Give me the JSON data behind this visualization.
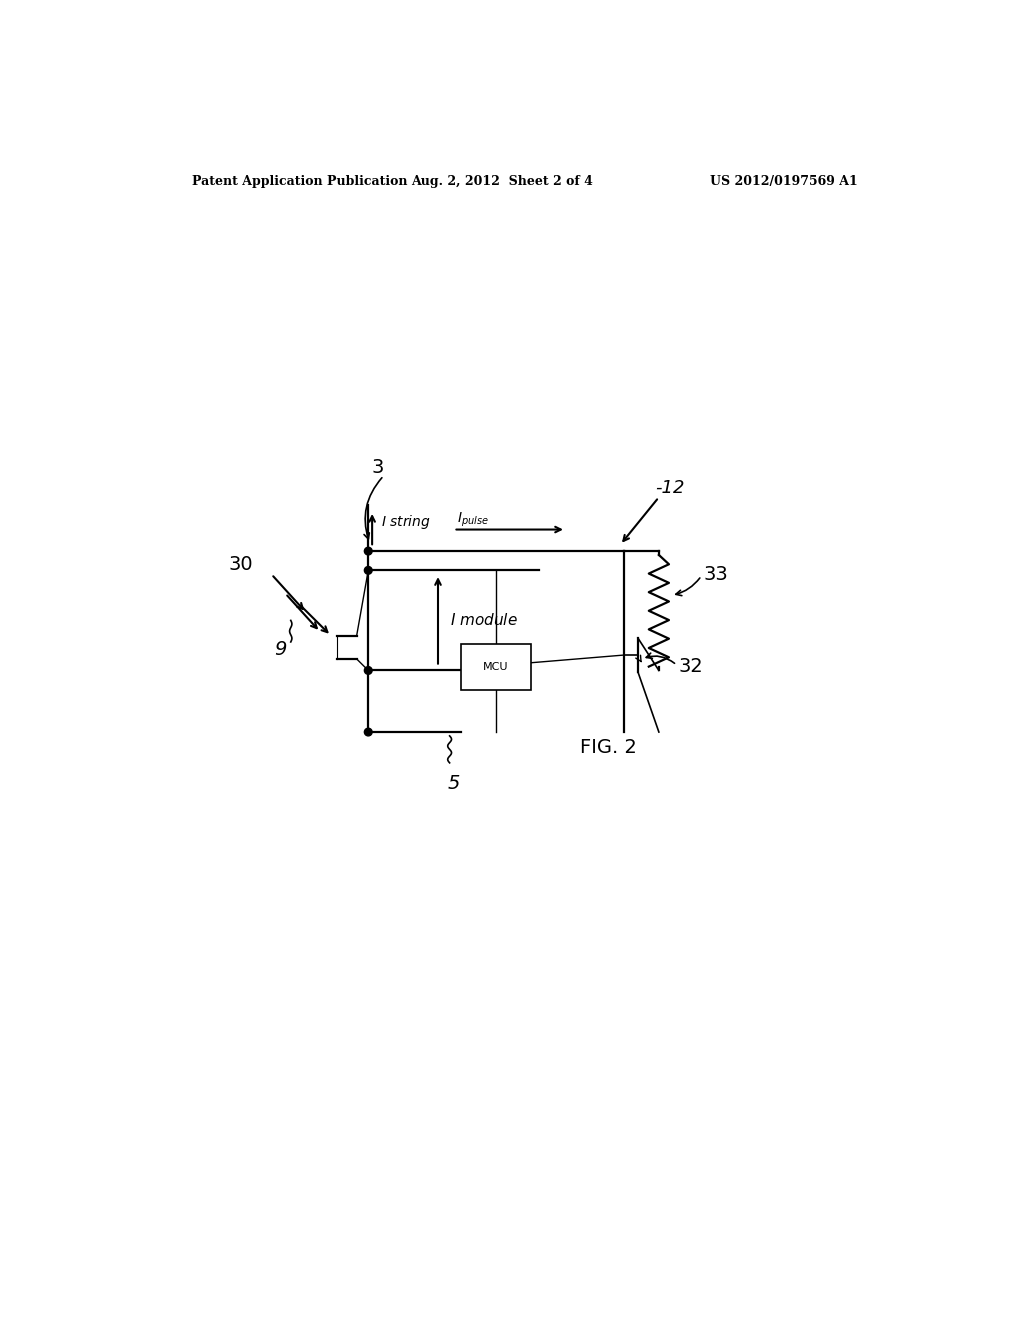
{
  "bg_color": "#ffffff",
  "header_left": "Patent Application Publication",
  "header_center": "Aug. 2, 2012  Sheet 2 of 4",
  "header_right": "US 2012/0197569 A1",
  "fig_label": "FIG. 2",
  "mcu_label": "MCU",
  "label_3": "3",
  "label_5": "5",
  "label_9": "9",
  "label_12": "-12",
  "label_30": "30",
  "label_32": "32",
  "label_33": "33",
  "I_string_label": "I string",
  "I_pulse_label": "I pulse",
  "I_module_label": "I module"
}
